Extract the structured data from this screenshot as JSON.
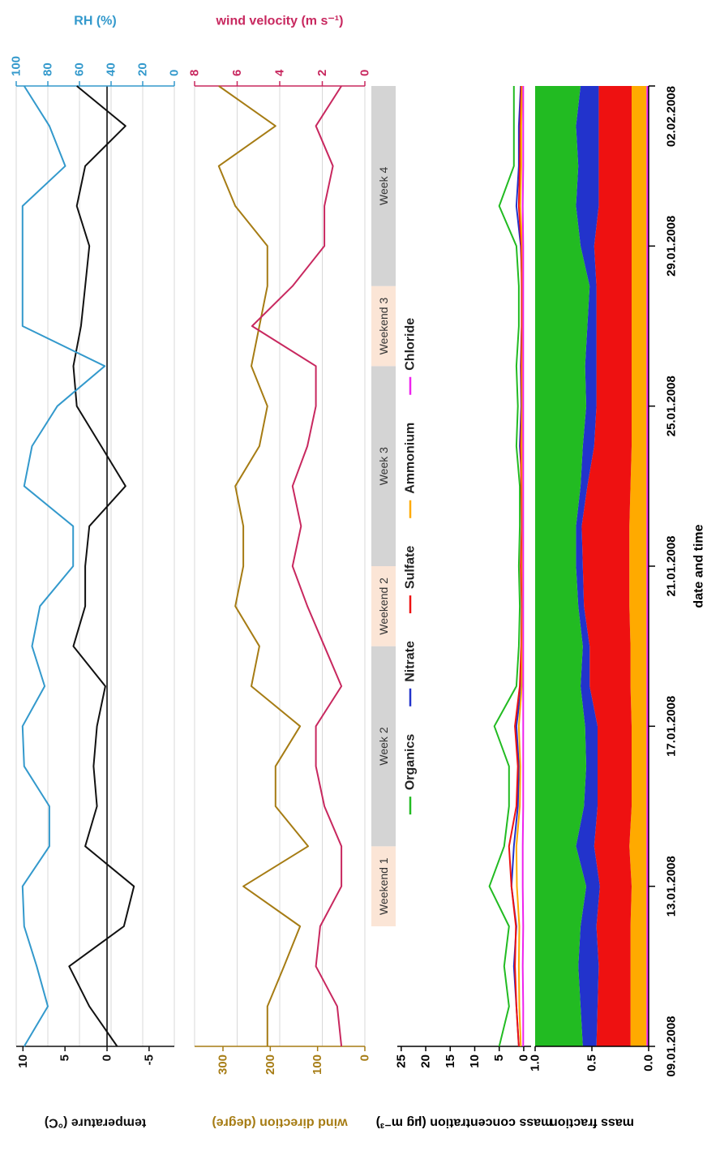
{
  "chart_data": [
    {
      "type": "line",
      "ylabel": "temperature (°C)",
      "y2label": "RH (%)",
      "x": [
        "2008-01-09",
        "2008-01-10",
        "2008-01-11",
        "2008-01-12",
        "2008-01-13",
        "2008-01-14",
        "2008-01-15",
        "2008-01-16",
        "2008-01-17",
        "2008-01-18",
        "2008-01-19",
        "2008-01-20",
        "2008-01-21",
        "2008-01-22",
        "2008-01-23",
        "2008-01-24",
        "2008-01-25",
        "2008-01-26",
        "2008-01-27",
        "2008-01-28",
        "2008-01-29",
        "2008-01-30",
        "2008-01-31",
        "2008-02-01",
        "2008-02-02"
      ],
      "xlim": [
        "2008-01-09",
        "2008-02-02"
      ],
      "ylim": [
        -8,
        10.8
      ],
      "yticks": [
        -5,
        0,
        5,
        10
      ],
      "y2lim": [
        0,
        100
      ],
      "y2ticks": [
        0,
        20,
        40,
        60,
        80,
        100
      ],
      "grid": true,
      "zero_line": true,
      "series": [
        {
          "color": "#111111",
          "values": [
            -1.2,
            2.1,
            4.5,
            -2,
            -3.2,
            2.6,
            1.2,
            1.6,
            1.2,
            0.2,
            4,
            2.6,
            2.6,
            2.1,
            -2.2,
            0.7,
            3.6,
            4,
            3.1,
            2.6,
            2.1,
            3.6,
            2.6,
            -2.2,
            3.6
          ]
        },
        {
          "color": "#3399cc",
          "axis": "y2",
          "values": [
            95,
            80,
            87,
            95,
            96,
            79,
            79,
            95,
            96,
            82,
            90,
            85,
            64,
            64,
            95,
            90,
            74,
            44,
            96,
            96,
            96,
            96,
            69,
            79,
            95
          ]
        }
      ]
    },
    {
      "type": "line",
      "ylabel": "wind direction (degre)",
      "y2label": "wind velocity (m s⁻¹)",
      "x": [
        "2008-01-09",
        "2008-01-10",
        "2008-01-11",
        "2008-01-12",
        "2008-01-13",
        "2008-01-14",
        "2008-01-15",
        "2008-01-16",
        "2008-01-17",
        "2008-01-18",
        "2008-01-19",
        "2008-01-20",
        "2008-01-21",
        "2008-01-22",
        "2008-01-23",
        "2008-01-24",
        "2008-01-25",
        "2008-01-26",
        "2008-01-27",
        "2008-01-28",
        "2008-01-29",
        "2008-01-30",
        "2008-01-31",
        "2008-02-01",
        "2008-02-02"
      ],
      "xlim": [
        "2008-01-09",
        "2008-02-02"
      ],
      "ylim": [
        0,
        360
      ],
      "yticks": [
        0,
        100,
        200,
        300
      ],
      "y2lim": [
        0,
        8
      ],
      "y2ticks": [
        0,
        2,
        4,
        6,
        8
      ],
      "grid": true,
      "series": [
        {
          "color": "#a67c14",
          "values": [
            206,
            206,
            171,
            137,
            257,
            120,
            189,
            189,
            137,
            240,
            223,
            274,
            257,
            257,
            274,
            223,
            206,
            240,
            223,
            206,
            206,
            274,
            309,
            189,
            309
          ]
        },
        {
          "color": "#c8285f",
          "axis": "y2",
          "values": [
            1.1,
            1.3,
            2.3,
            2.1,
            1.1,
            1.1,
            1.9,
            2.3,
            2.3,
            1.1,
            1.9,
            2.7,
            3.4,
            3.0,
            3.4,
            2.7,
            2.3,
            2.3,
            5.3,
            3.4,
            1.9,
            1.9,
            1.5,
            2.3,
            1.1
          ]
        }
      ]
    },
    {
      "type": "timeline",
      "xlim": [
        "2008-01-09",
        "2008-02-02"
      ],
      "periods": [
        {
          "label": "Weekend 1",
          "start": "2008-01-12",
          "end": "2008-01-14",
          "color": "#fbe5d6"
        },
        {
          "label": "Week 2",
          "start": "2008-01-14",
          "end": "2008-01-19",
          "color": "#d4d4d4"
        },
        {
          "label": "Weekend 2",
          "start": "2008-01-19",
          "end": "2008-01-21",
          "color": "#fbe5d6"
        },
        {
          "label": "Week 3",
          "start": "2008-01-21",
          "end": "2008-01-26",
          "color": "#d4d4d4"
        },
        {
          "label": "Weekend 3",
          "start": "2008-01-26",
          "end": "2008-01-28",
          "color": "#fbe5d6"
        },
        {
          "label": "Week 4",
          "start": "2008-01-28",
          "end": "2008-02-02",
          "color": "#d4d4d4"
        }
      ]
    },
    {
      "type": "line",
      "ylabel": "mass concentration (µg m⁻³)",
      "x": [
        "2008-01-09",
        "2008-01-10",
        "2008-01-11",
        "2008-01-12",
        "2008-01-13",
        "2008-01-14",
        "2008-01-15",
        "2008-01-16",
        "2008-01-17",
        "2008-01-18",
        "2008-01-19",
        "2008-01-20",
        "2008-01-21",
        "2008-01-22",
        "2008-01-23",
        "2008-01-24",
        "2008-01-25",
        "2008-01-26",
        "2008-01-27",
        "2008-01-28",
        "2008-01-29",
        "2008-01-30",
        "2008-01-31",
        "2008-02-01",
        "2008-02-02"
      ],
      "xlim": [
        "2008-01-09",
        "2008-02-02"
      ],
      "ylim": [
        -1.5,
        25.8
      ],
      "yticks": [
        0,
        5,
        10,
        15,
        20,
        25
      ],
      "grid": false,
      "legend": "top",
      "series": [
        {
          "name": "Organics",
          "color": "#22bb22",
          "values": [
            5,
            3,
            4,
            3,
            7,
            4,
            3,
            3,
            6,
            1.5,
            1,
            0.8,
            1,
            0.8,
            0.8,
            1.5,
            1.2,
            1.5,
            1,
            1,
            1.5,
            5,
            2,
            2,
            2
          ]
        },
        {
          "name": "Nitrate",
          "color": "#2233cc",
          "values": [
            1,
            1.5,
            2,
            1.5,
            2.5,
            2,
            1.2,
            1,
            1.5,
            0.5,
            0.4,
            0.3,
            0.4,
            0.3,
            0.3,
            0.8,
            0.5,
            0.6,
            0.4,
            0.3,
            0.6,
            1.5,
            1,
            1,
            0.6
          ]
        },
        {
          "name": "Sulfate",
          "color": "#ee1111",
          "values": [
            1,
            1.5,
            1.8,
            1.6,
            2.5,
            3,
            1.5,
            1.2,
            1.8,
            0.8,
            0.5,
            0.4,
            0.6,
            0.4,
            0.5,
            0.6,
            0.4,
            0.5,
            0.4,
            0.4,
            0.5,
            1,
            0.8,
            0.7,
            0.5
          ]
        },
        {
          "name": "Ammonium",
          "color": "#ffaa00",
          "values": [
            0.6,
            0.9,
            1,
            0.9,
            1.4,
            1.5,
            0.8,
            0.7,
            1,
            0.4,
            0.3,
            0.2,
            0.3,
            0.2,
            0.3,
            0.4,
            0.3,
            0.3,
            0.2,
            0.2,
            0.3,
            0.7,
            0.5,
            0.5,
            0.3
          ]
        },
        {
          "name": "Chloride",
          "color": "#ee22ee",
          "values": [
            0.1,
            0.1,
            0.2,
            0.1,
            0.2,
            0.2,
            0.1,
            0.1,
            0.1,
            0.1,
            0.1,
            0.1,
            0.1,
            0.1,
            0.1,
            0.1,
            0.1,
            0.1,
            0.1,
            0.1,
            0.1,
            0.2,
            0.1,
            0.1,
            0.1
          ]
        }
      ]
    },
    {
      "type": "area",
      "stacked": true,
      "ylabel": "mass fraction",
      "xlabel": "date and time",
      "x": [
        "2008-01-09",
        "2008-01-10",
        "2008-01-11",
        "2008-01-12",
        "2008-01-13",
        "2008-01-14",
        "2008-01-15",
        "2008-01-16",
        "2008-01-17",
        "2008-01-18",
        "2008-01-19",
        "2008-01-20",
        "2008-01-21",
        "2008-01-22",
        "2008-01-23",
        "2008-01-24",
        "2008-01-25",
        "2008-01-26",
        "2008-01-27",
        "2008-01-28",
        "2008-01-29",
        "2008-01-30",
        "2008-01-31",
        "2008-02-01",
        "2008-02-02"
      ],
      "xlim": [
        "2008-01-09",
        "2008-02-02"
      ],
      "xticks": [
        {
          "value": "2008-01-09",
          "label": "09.01.2008"
        },
        {
          "value": "2008-01-13",
          "label": "13.01.2008"
        },
        {
          "value": "2008-01-17",
          "label": "17.01.2008"
        },
        {
          "value": "2008-01-21",
          "label": "21.01.2008"
        },
        {
          "value": "2008-01-25",
          "label": "25.01.2008"
        },
        {
          "value": "2008-01-29",
          "label": "29.01.2008"
        },
        {
          "value": "2008-02-02",
          "label": "02.02.2008"
        }
      ],
      "ylim": [
        0,
        1
      ],
      "yticks": [
        {
          "value": 0,
          "label": "0.0"
        },
        0.5,
        {
          "value": 1,
          "label": "1.0"
        }
      ],
      "grid": false,
      "series": [
        {
          "color": "#22bb22",
          "values": [
            0.42,
            0.4,
            0.38,
            0.4,
            0.45,
            0.36,
            0.43,
            0.45,
            0.44,
            0.4,
            0.42,
            0.38,
            0.36,
            0.36,
            0.4,
            0.42,
            0.45,
            0.44,
            0.46,
            0.48,
            0.4,
            0.36,
            0.38,
            0.36,
            0.4
          ]
        },
        {
          "color": "#2233cc",
          "values": [
            0.12,
            0.15,
            0.18,
            0.14,
            0.12,
            0.16,
            0.12,
            0.1,
            0.11,
            0.08,
            0.06,
            0.05,
            0.06,
            0.05,
            0.06,
            0.1,
            0.09,
            0.1,
            0.08,
            0.06,
            0.12,
            0.2,
            0.18,
            0.2,
            0.16
          ]
        },
        {
          "color": "#ee1111",
          "values": [
            0.3,
            0.29,
            0.28,
            0.3,
            0.28,
            0.31,
            0.3,
            0.3,
            0.3,
            0.36,
            0.36,
            0.4,
            0.41,
            0.42,
            0.38,
            0.33,
            0.31,
            0.31,
            0.31,
            0.31,
            0.33,
            0.29,
            0.29,
            0.29,
            0.29
          ]
        },
        {
          "color": "#ffaa00",
          "values": [
            0.14,
            0.14,
            0.14,
            0.14,
            0.13,
            0.15,
            0.13,
            0.13,
            0.13,
            0.14,
            0.14,
            0.15,
            0.15,
            0.15,
            0.14,
            0.13,
            0.13,
            0.13,
            0.13,
            0.13,
            0.13,
            0.13,
            0.13,
            0.13,
            0.13
          ]
        },
        {
          "color": "#ee22ee",
          "values": [
            0.02,
            0.02,
            0.02,
            0.02,
            0.02,
            0.02,
            0.02,
            0.02,
            0.02,
            0.02,
            0.02,
            0.02,
            0.02,
            0.02,
            0.02,
            0.02,
            0.02,
            0.02,
            0.02,
            0.02,
            0.02,
            0.02,
            0.02,
            0.02,
            0.02
          ]
        }
      ]
    }
  ]
}
